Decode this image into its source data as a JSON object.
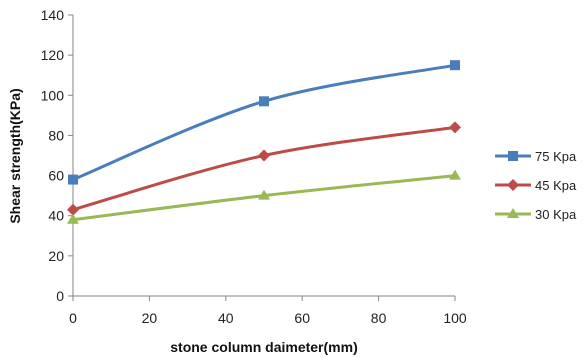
{
  "chart_data": {
    "type": "line",
    "title": "",
    "xlabel": "stone column daimeter(mm)",
    "ylabel": "Shear strength(KPa)",
    "xlim": [
      0,
      100
    ],
    "ylim": [
      0,
      140
    ],
    "x_ticks": [
      0,
      20,
      40,
      60,
      80,
      100
    ],
    "y_ticks": [
      0,
      20,
      40,
      60,
      80,
      100,
      120,
      140
    ],
    "x_tick_labels": [
      "0",
      "20",
      "40",
      "60",
      "80",
      "100"
    ],
    "y_tick_labels": [
      "0",
      "20",
      "40",
      "60",
      "80",
      "100",
      "120",
      "140"
    ],
    "x": [
      0,
      50,
      100
    ],
    "grid": false,
    "smooth": true,
    "legend_position": "right",
    "series": [
      {
        "name": "75 Kpa",
        "values": [
          58,
          97,
          115
        ],
        "color": "#4a7ebb",
        "marker": "square"
      },
      {
        "name": "45 Kpa",
        "values": [
          43,
          70,
          84
        ],
        "color": "#be4b48",
        "marker": "diamond"
      },
      {
        "name": "30 Kpa",
        "values": [
          38,
          50,
          60
        ],
        "color": "#98b954",
        "marker": "triangle"
      }
    ]
  }
}
